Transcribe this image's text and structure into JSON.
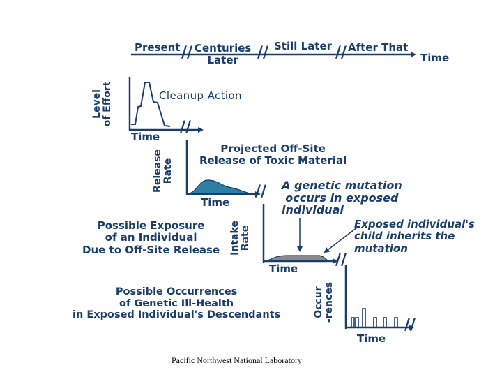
{
  "colors": {
    "primary": "#1a3d6b",
    "fill_blue": "#2f7ea5",
    "fill_gray": "#8a8a8a",
    "background": "#ffffff"
  },
  "timeline": {
    "present": "Present",
    "centuries_later": "Centuries Later",
    "centuries_line1": "Centuries",
    "centuries_line2": "Later",
    "still_later": "Still Later",
    "after_that": "After That",
    "time": "Time",
    "break_symbol": "//"
  },
  "panel_effort": {
    "axis_label_line1": "Level",
    "axis_label_line2": "of Effort",
    "title": "Cleanup Action",
    "x_label": "Time"
  },
  "panel_release": {
    "axis_label_line1": "Release",
    "axis_label_line2": "Rate",
    "title_line1": "Projected Off-Site",
    "title_line2": "Release of Toxic Material",
    "x_label": "Time"
  },
  "panel_intake": {
    "axis_label_line1": "Intake",
    "axis_label_line2": "Rate",
    "caption_line1": "Possible Exposure",
    "caption_line2": "of an Individual",
    "caption_line3": "Due to Off-Site Release",
    "x_label": "Time",
    "annotation_mutation_line1": "A genetic mutation",
    "annotation_mutation_line2": "occurs in exposed",
    "annotation_mutation_line3": "individual",
    "annotation_child_line1": "Exposed individual's",
    "annotation_child_line2": "child inherits the",
    "annotation_child_line3": "mutation"
  },
  "panel_occurrences": {
    "axis_label_line1": "Occur",
    "axis_label_line2": "-rences",
    "caption_line1": "Possible Occurrences",
    "caption_line2": "of Genetic Ill-Health",
    "caption_line3": "in Exposed Individual's Descendants",
    "x_label": "Time"
  },
  "footer": "Pacific Northwest National Laboratory"
}
